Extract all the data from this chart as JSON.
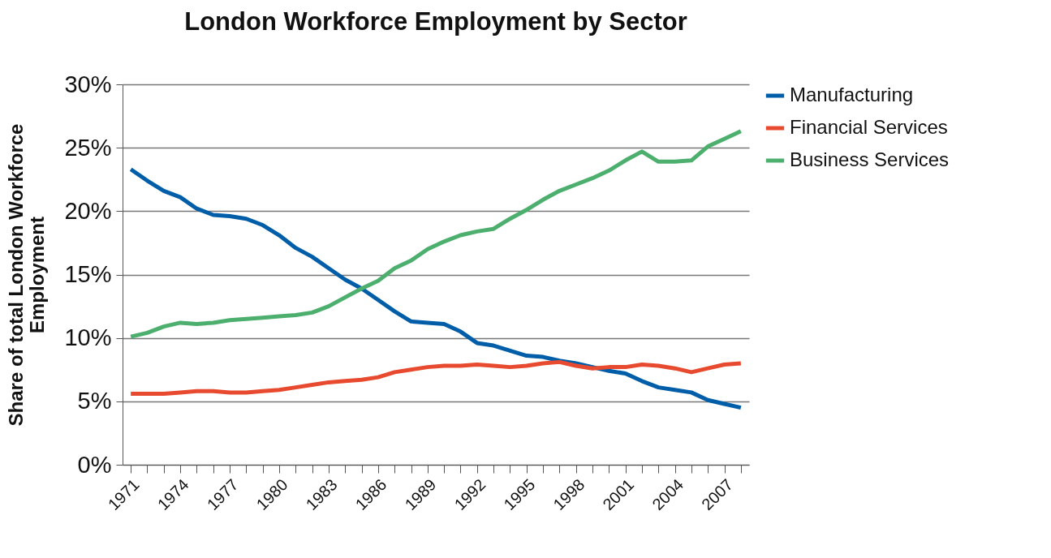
{
  "chart_data": {
    "type": "line",
    "title": "London Workforce Employment by Sector",
    "ylabel": "Share of total London Workforce Employment",
    "categories": [
      "1971",
      null,
      null,
      "1974",
      null,
      null,
      "1977",
      null,
      null,
      "1980",
      null,
      null,
      "1983",
      null,
      null,
      "1986",
      null,
      null,
      "1989",
      null,
      null,
      "1992",
      null,
      null,
      "1995",
      null,
      null,
      "1998",
      null,
      null,
      "2001",
      null,
      null,
      "2004",
      null,
      null,
      "2007",
      null
    ],
    "series": [
      {
        "name": "Manufacturing",
        "color": "#005ea8",
        "values": [
          23.3,
          22.4,
          21.6,
          21.1,
          20.2,
          19.7,
          19.6,
          19.4,
          18.9,
          18.1,
          17.1,
          16.4,
          15.5,
          14.6,
          13.9,
          13.0,
          12.1,
          11.3,
          11.2,
          11.1,
          10.5,
          9.6,
          9.4,
          9.0,
          8.6,
          8.5,
          8.2,
          8.0,
          7.7,
          7.4,
          7.2,
          6.6,
          6.1,
          5.9,
          5.7,
          5.1,
          4.8,
          4.5
        ]
      },
      {
        "name": "Financial Services",
        "color": "#e84a2f",
        "values": [
          5.6,
          5.6,
          5.6,
          5.7,
          5.8,
          5.8,
          5.7,
          5.7,
          5.8,
          5.9,
          6.1,
          6.3,
          6.5,
          6.6,
          6.7,
          6.9,
          7.3,
          7.5,
          7.7,
          7.8,
          7.8,
          7.9,
          7.8,
          7.7,
          7.8,
          8.0,
          8.1,
          7.8,
          7.6,
          7.7,
          7.7,
          7.9,
          7.8,
          7.6,
          7.3,
          7.6,
          7.9,
          8.0
        ]
      },
      {
        "name": "Business Services",
        "color": "#4caf6e",
        "values": [
          10.1,
          10.4,
          10.9,
          11.2,
          11.1,
          11.2,
          11.4,
          11.5,
          11.6,
          11.7,
          11.8,
          12.0,
          12.5,
          13.2,
          13.9,
          14.5,
          15.5,
          16.1,
          17.0,
          17.6,
          18.1,
          18.4,
          18.6,
          19.4,
          20.1,
          20.9,
          21.6,
          22.1,
          22.6,
          23.2,
          24.0,
          24.7,
          23.9,
          23.9,
          24.0,
          25.1,
          25.7,
          26.3
        ]
      }
    ],
    "ylim": [
      0,
      30
    ],
    "yticks": [
      {
        "value": 0,
        "label": "0%"
      },
      {
        "value": 5,
        "label": "5%"
      },
      {
        "value": 10,
        "label": "10%"
      },
      {
        "value": 15,
        "label": "15%"
      },
      {
        "value": 20,
        "label": "20%"
      },
      {
        "value": 25,
        "label": "25%"
      },
      {
        "value": 30,
        "label": "30%"
      }
    ],
    "grid": "y",
    "legend": "right",
    "marker": "none",
    "line_style": "solid"
  }
}
